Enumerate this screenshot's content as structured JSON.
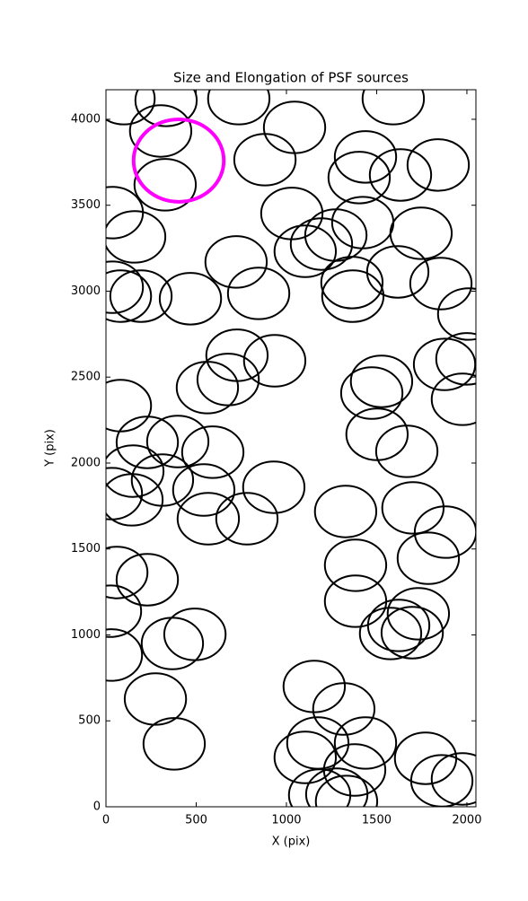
{
  "chart_data": {
    "type": "ellipse",
    "title": "Size and Elongation of PSF sources",
    "x_label": "X (pix)",
    "y_label": "Y (pix)",
    "xlim": [
      0,
      2050
    ],
    "ylim": [
      0,
      4172
    ],
    "xticks": [
      0,
      500,
      1000,
      1500,
      2000
    ],
    "yticks": [
      0,
      500,
      1000,
      1500,
      2000,
      2500,
      3000,
      3500,
      4000
    ],
    "series": [
      {
        "color": "#000000",
        "width": 340,
        "height": 300,
        "line_width": 2,
        "x": [
          100,
          333,
          736,
          1592,
          303,
          1045,
          328,
          881,
          1438,
          1403,
          1632,
          1841,
          35,
          159,
          1030,
          1274,
          1423,
          1746,
          721,
          1104,
          1194,
          35,
          80,
          194,
          468,
          846,
          1363,
          1368,
          1617,
          1856,
          2010,
          726,
          935,
          677,
          562,
          80,
          1527,
          1473,
          1876,
          2000,
          1975,
          398,
          229,
          1502,
          1667,
          592,
          149,
          30,
          144,
          313,
          542,
          567,
          781,
          930,
          1328,
          1701,
          1881,
          1786,
          1383,
          1383,
          60,
          229,
          25,
          30,
          368,
          493,
          1577,
          1622,
          1697,
          1731,
          274,
          378,
          1154,
          1318,
          1174,
          1104,
          1438,
          1378,
          1771,
          1861,
          1975,
          1184,
          1279,
          1333
        ],
        "y": [
          4120,
          4110,
          4120,
          4120,
          3932,
          3953,
          3619,
          3765,
          3781,
          3661,
          3676,
          3734,
          3457,
          3316,
          3452,
          3326,
          3399,
          3337,
          3170,
          3232,
          3274,
          3023,
          2971,
          2971,
          2956,
          2987,
          3050,
          2971,
          3112,
          3044,
          2867,
          2627,
          2595,
          2486,
          2439,
          2334,
          2475,
          2407,
          2574,
          2606,
          2371,
          2125,
          2120,
          2167,
          2068,
          2063,
          1953,
          1822,
          1786,
          1901,
          1843,
          1676,
          1676,
          1859,
          1718,
          1739,
          1598,
          1446,
          1405,
          1196,
          1363,
          1321,
          1138,
          883,
          950,
          1003,
          1008,
          1055,
          1013,
          1123,
          627,
          366,
          700,
          569,
          371,
          287,
          371,
          214,
          282,
          151,
          162,
          68,
          73,
          31
        ]
      },
      {
        "color": "#ff00ff",
        "width": 500,
        "height": 480,
        "line_width": 4,
        "x": [
          403
        ],
        "y": [
          3760
        ]
      }
    ]
  }
}
